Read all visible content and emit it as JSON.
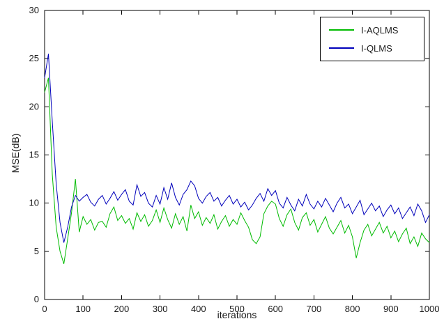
{
  "figure": {
    "background": "#ffffff"
  },
  "chart_data": {
    "type": "line",
    "title": "",
    "xlabel": "iterations",
    "ylabel": "MSE(dB)",
    "xlim": [
      0,
      1000
    ],
    "ylim": [
      0,
      30
    ],
    "xticks": [
      0,
      100,
      200,
      300,
      400,
      500,
      600,
      700,
      800,
      900,
      1000
    ],
    "yticks": [
      0,
      5,
      10,
      15,
      20,
      25,
      30
    ],
    "grid": false,
    "legend": {
      "position": "upper-right",
      "entries": [
        "I-AQLMS",
        "I-QLMS"
      ]
    },
    "x": [
      0,
      10,
      20,
      30,
      40,
      50,
      60,
      70,
      80,
      90,
      100,
      110,
      120,
      130,
      140,
      150,
      160,
      170,
      180,
      190,
      200,
      210,
      220,
      230,
      240,
      250,
      260,
      270,
      280,
      290,
      300,
      310,
      320,
      330,
      340,
      350,
      360,
      370,
      380,
      390,
      400,
      410,
      420,
      430,
      440,
      450,
      460,
      470,
      480,
      490,
      500,
      510,
      520,
      530,
      540,
      550,
      560,
      570,
      580,
      590,
      600,
      610,
      620,
      630,
      640,
      650,
      660,
      670,
      680,
      690,
      700,
      710,
      720,
      730,
      740,
      750,
      760,
      770,
      780,
      790,
      800,
      810,
      820,
      830,
      840,
      850,
      860,
      870,
      880,
      890,
      900,
      910,
      920,
      930,
      940,
      950,
      960,
      970,
      980,
      990,
      1000
    ],
    "series": [
      {
        "name": "I-AQLMS",
        "color": "#00bb00",
        "values": [
          21.5,
          23.0,
          13.0,
          7.5,
          5.0,
          3.7,
          6.3,
          9.0,
          12.5,
          7.0,
          8.6,
          7.8,
          8.3,
          7.2,
          8.0,
          8.1,
          7.5,
          8.9,
          9.6,
          8.2,
          8.7,
          7.9,
          8.4,
          7.3,
          9.0,
          8.1,
          8.8,
          7.6,
          8.2,
          9.3,
          8.0,
          9.5,
          8.3,
          7.4,
          8.9,
          7.8,
          8.6,
          7.1,
          9.8,
          8.4,
          9.1,
          7.7,
          8.5,
          7.9,
          8.8,
          7.3,
          8.1,
          8.7,
          7.6,
          8.3,
          7.8,
          9.0,
          8.2,
          7.5,
          6.2,
          5.8,
          6.5,
          8.9,
          9.7,
          10.2,
          9.9,
          8.4,
          7.6,
          8.8,
          9.4,
          8.0,
          7.2,
          8.5,
          9.0,
          7.7,
          8.3,
          7.0,
          7.8,
          8.6,
          7.4,
          6.8,
          7.5,
          8.2,
          6.9,
          7.7,
          6.5,
          4.3,
          5.9,
          7.2,
          7.8,
          6.6,
          7.3,
          8.0,
          6.9,
          7.6,
          6.4,
          7.1,
          6.0,
          6.8,
          7.4,
          5.8,
          6.5,
          5.5,
          6.9,
          6.3,
          5.9
        ]
      },
      {
        "name": "I-QLMS",
        "color": "#0000bb",
        "values": [
          23.0,
          25.5,
          18.5,
          12.0,
          8.0,
          5.9,
          7.5,
          9.6,
          10.8,
          10.2,
          10.6,
          10.9,
          10.1,
          9.7,
          10.4,
          10.8,
          9.9,
          10.5,
          11.2,
          10.3,
          10.9,
          11.4,
          10.2,
          9.8,
          11.9,
          10.7,
          11.1,
          10.0,
          9.6,
          10.8,
          9.9,
          11.6,
          10.4,
          12.1,
          10.6,
          9.8,
          10.9,
          11.4,
          12.3,
          11.8,
          10.5,
          10.0,
          10.7,
          11.1,
          10.2,
          10.6,
          9.7,
          10.3,
          10.8,
          9.9,
          10.4,
          9.6,
          10.1,
          9.3,
          9.8,
          10.5,
          11.0,
          10.2,
          11.5,
          10.8,
          11.3,
          10.0,
          9.5,
          10.6,
          9.8,
          9.2,
          10.4,
          9.7,
          10.9,
          9.9,
          9.4,
          10.2,
          9.6,
          10.5,
          9.8,
          9.1,
          10.0,
          10.6,
          9.5,
          9.9,
          8.9,
          9.6,
          10.3,
          8.8,
          9.4,
          10.0,
          9.2,
          9.7,
          8.6,
          9.3,
          9.8,
          8.9,
          9.5,
          8.4,
          9.0,
          9.6,
          8.7,
          9.9,
          9.2,
          8.0,
          8.8
        ]
      }
    ]
  }
}
